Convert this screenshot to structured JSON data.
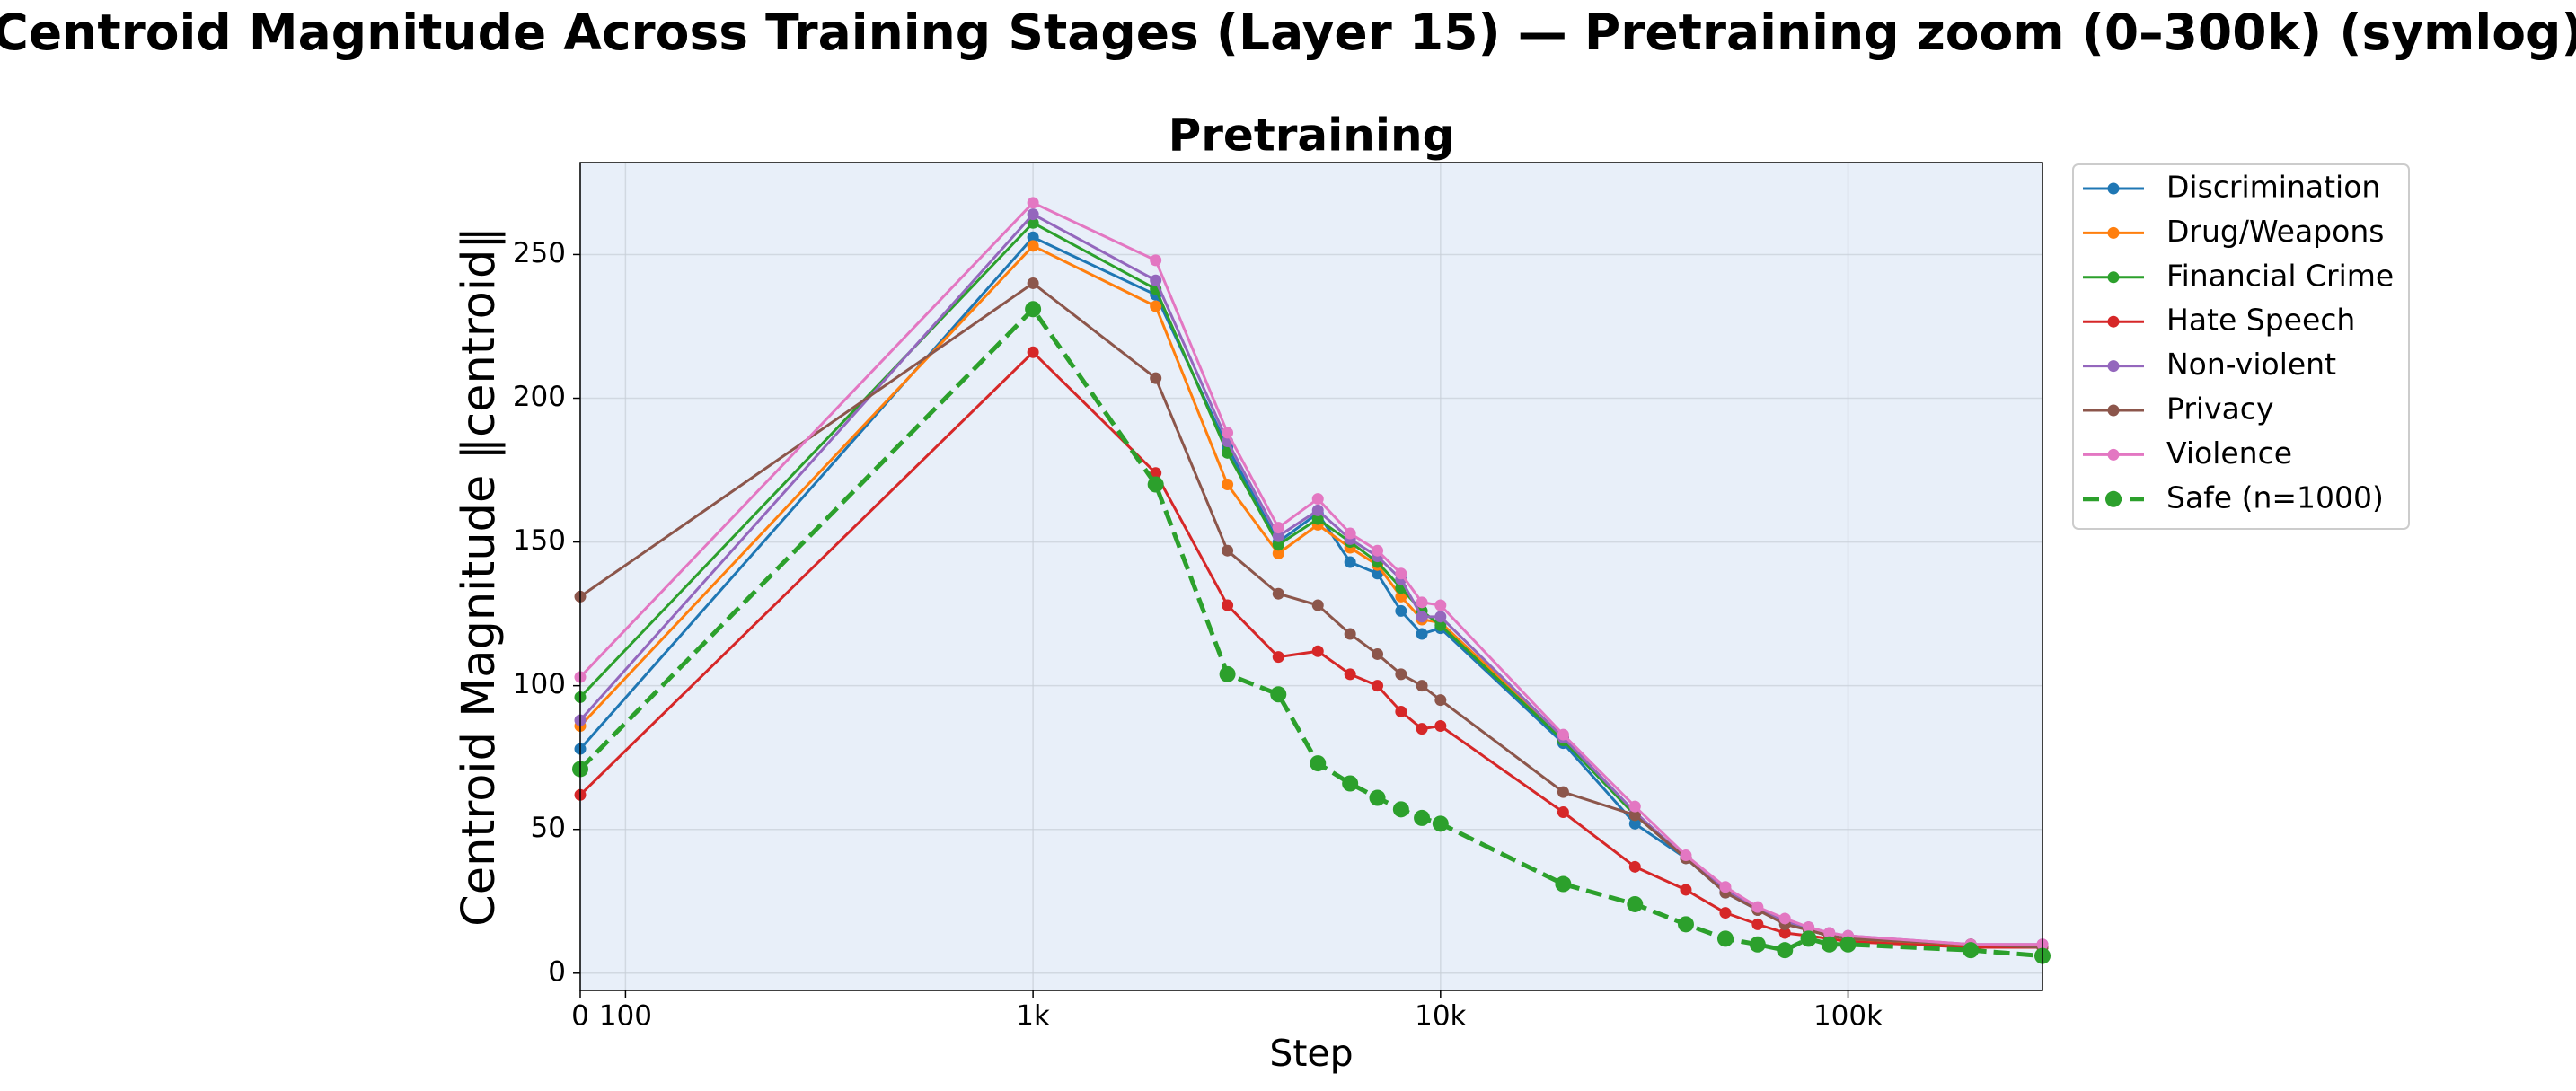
{
  "chart_data": {
    "type": "line",
    "suptitle": "Centroid Magnitude Across Training Stages (Layer 15) — Pretraining zoom (0–300k) (symlog)",
    "title": "Pretraining",
    "x_label": "Step",
    "y_label": "Centroid Magnitude  ‖centroid‖",
    "xscale": "symlog",
    "linthresh": 1000,
    "x": [
      0,
      1000,
      2000,
      3000,
      4000,
      5000,
      6000,
      7000,
      8000,
      9000,
      10000,
      20000,
      30000,
      40000,
      50000,
      60000,
      70000,
      80000,
      90000,
      100000,
      200000,
      300000
    ],
    "xlim": [
      0,
      300000
    ],
    "xticks": [
      0,
      100,
      {
        "value": 1000,
        "label": "1k"
      },
      {
        "value": 10000,
        "label": "10k"
      },
      {
        "value": 100000,
        "label": "100k"
      }
    ],
    "ylim": [
      -6,
      282
    ],
    "yticks": [
      0,
      50,
      100,
      150,
      200,
      250
    ],
    "grid": true,
    "legend": "outside-right",
    "series": [
      {
        "name": "Discrimination",
        "color": "#1f77b4",
        "values": [
          78,
          256,
          236,
          183,
          150,
          160,
          143,
          139,
          126,
          118,
          120,
          80,
          52,
          40,
          28,
          22,
          18,
          15,
          13,
          12,
          9,
          9
        ]
      },
      {
        "name": "Drug/Weapons",
        "color": "#ff7f0e",
        "values": [
          86,
          253,
          232,
          170,
          146,
          156,
          148,
          142,
          131,
          123,
          122,
          82,
          55,
          40,
          29,
          22,
          18,
          15,
          13,
          12,
          9,
          9
        ]
      },
      {
        "name": "Financial Crime",
        "color": "#2ca02c",
        "values": [
          96,
          261,
          238,
          181,
          149,
          158,
          150,
          143,
          134,
          126,
          121,
          81,
          55,
          40,
          29,
          22,
          18,
          15,
          13,
          12,
          10,
          9
        ]
      },
      {
        "name": "Hate Speech",
        "color": "#d62728",
        "values": [
          62,
          216,
          174,
          128,
          110,
          112,
          104,
          100,
          91,
          85,
          86,
          56,
          37,
          29,
          21,
          17,
          14,
          13,
          12,
          11,
          9,
          9
        ]
      },
      {
        "name": "Non-violent",
        "color": "#9467bd",
        "values": [
          88,
          264,
          241,
          185,
          152,
          161,
          151,
          145,
          137,
          124,
          124,
          82,
          56,
          40,
          29,
          22,
          18,
          16,
          14,
          13,
          10,
          10
        ]
      },
      {
        "name": "Privacy",
        "color": "#8c564b",
        "values": [
          131,
          240,
          207,
          147,
          132,
          128,
          118,
          111,
          104,
          100,
          95,
          63,
          55,
          40,
          28,
          22,
          17,
          15,
          13,
          12,
          10,
          9
        ]
      },
      {
        "name": "Violence",
        "color": "#e377c2",
        "values": [
          103,
          268,
          248,
          188,
          155,
          165,
          153,
          147,
          139,
          129,
          128,
          83,
          58,
          41,
          30,
          23,
          19,
          16,
          14,
          13,
          10,
          10
        ]
      },
      {
        "name": "Safe (n=1000)",
        "color": "#2ca02c",
        "dashed": true,
        "values": [
          71,
          231,
          170,
          104,
          97,
          73,
          66,
          61,
          57,
          54,
          52,
          31,
          24,
          17,
          12,
          10,
          8,
          12,
          10,
          10,
          8,
          6
        ]
      }
    ]
  }
}
